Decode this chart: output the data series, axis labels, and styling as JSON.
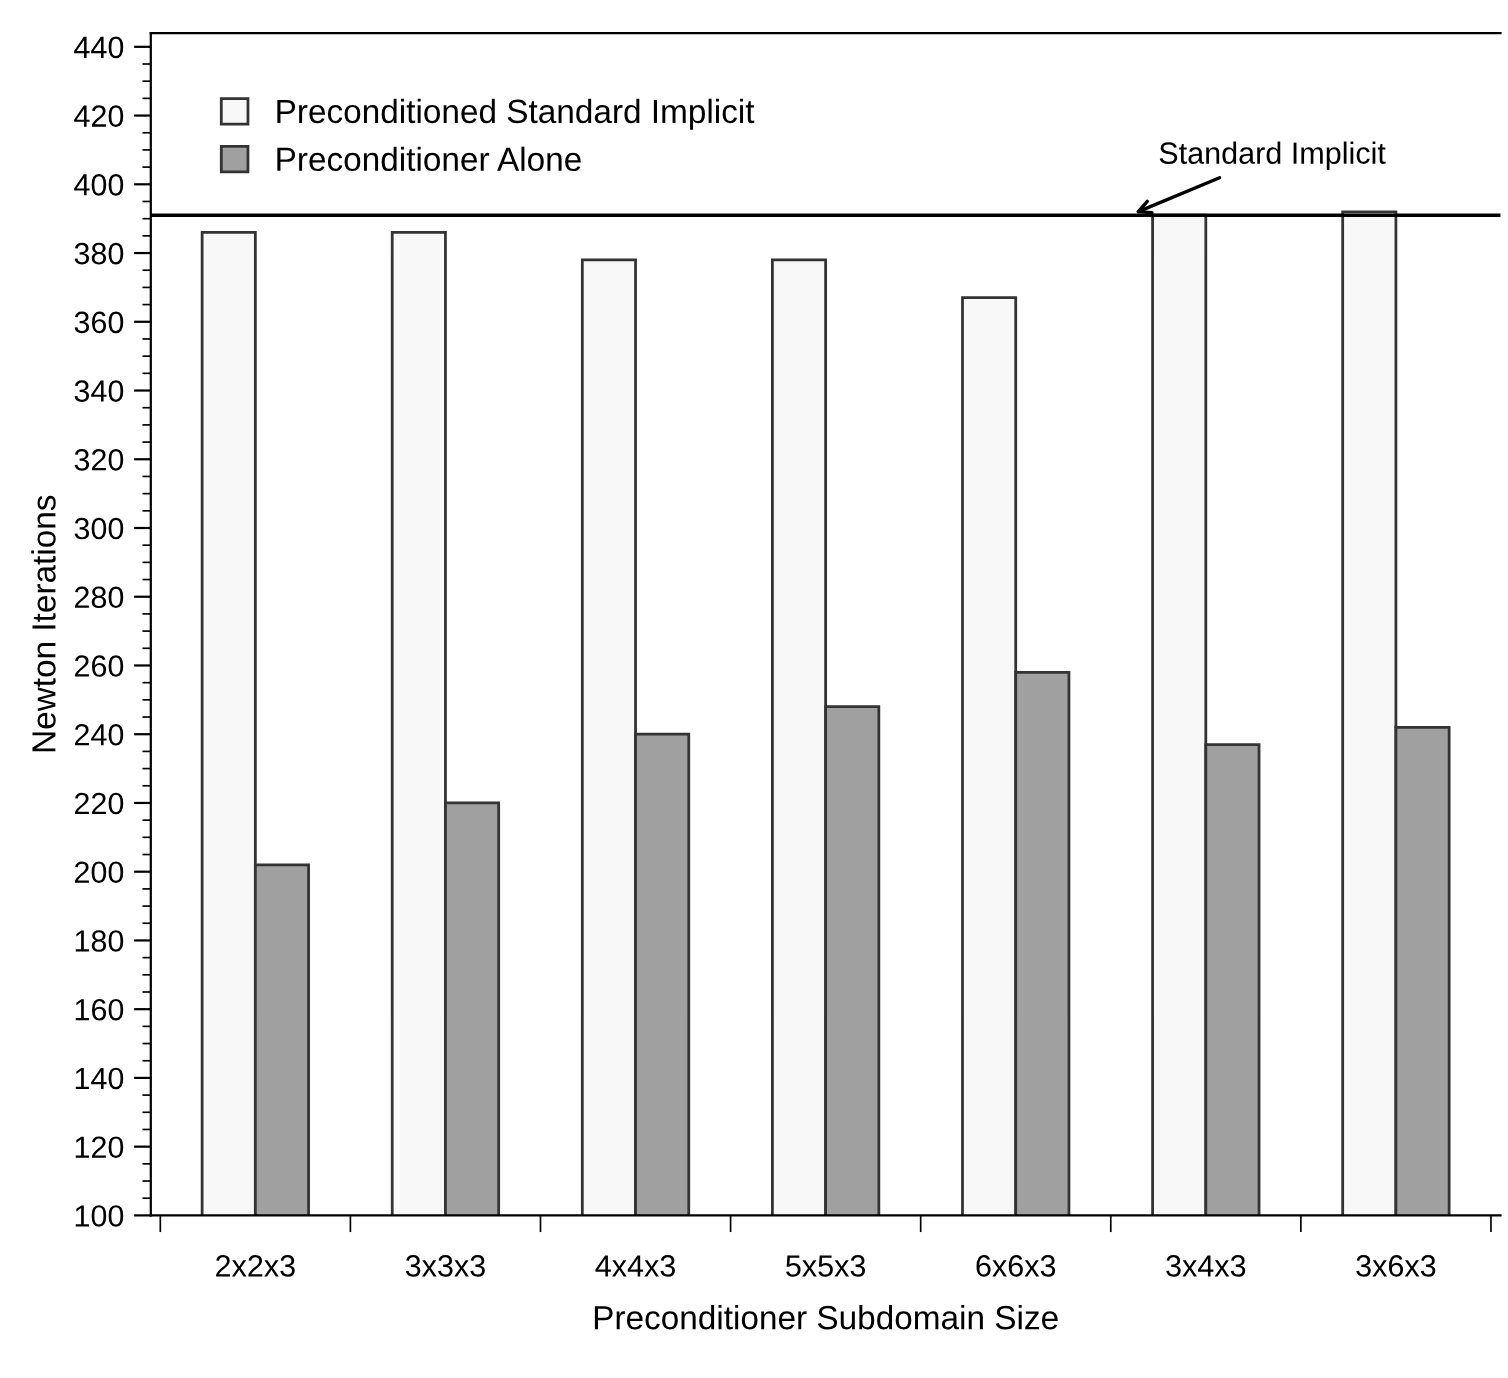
{
  "chart_data": {
    "type": "bar",
    "xlabel": "Preconditioner Subdomain Size",
    "ylabel": "Newton Iterations",
    "categories": [
      "2x2x3",
      "3x3x3",
      "4x4x3",
      "5x5x3",
      "6x6x3",
      "3x4x3",
      "3x6x3"
    ],
    "series": [
      {
        "name": "Preconditioned Standard Implicit",
        "color": "#f8f8f8",
        "values": [
          386,
          386,
          378,
          378,
          367,
          391,
          392
        ]
      },
      {
        "name": "Preconditioner Alone",
        "color": "#a0a0a0",
        "values": [
          202,
          220,
          240,
          248,
          258,
          237,
          242
        ]
      }
    ],
    "ylim": [
      100,
      444
    ],
    "yticks": [
      100,
      120,
      140,
      160,
      180,
      200,
      220,
      240,
      260,
      280,
      300,
      320,
      340,
      360,
      380,
      400,
      420,
      440
    ],
    "ref_lines": [
      {
        "axis": "y",
        "value": 391,
        "label": "Standard Implicit",
        "color": "#000000",
        "line_style": "solid"
      }
    ],
    "grid": false,
    "legend": "top left"
  }
}
